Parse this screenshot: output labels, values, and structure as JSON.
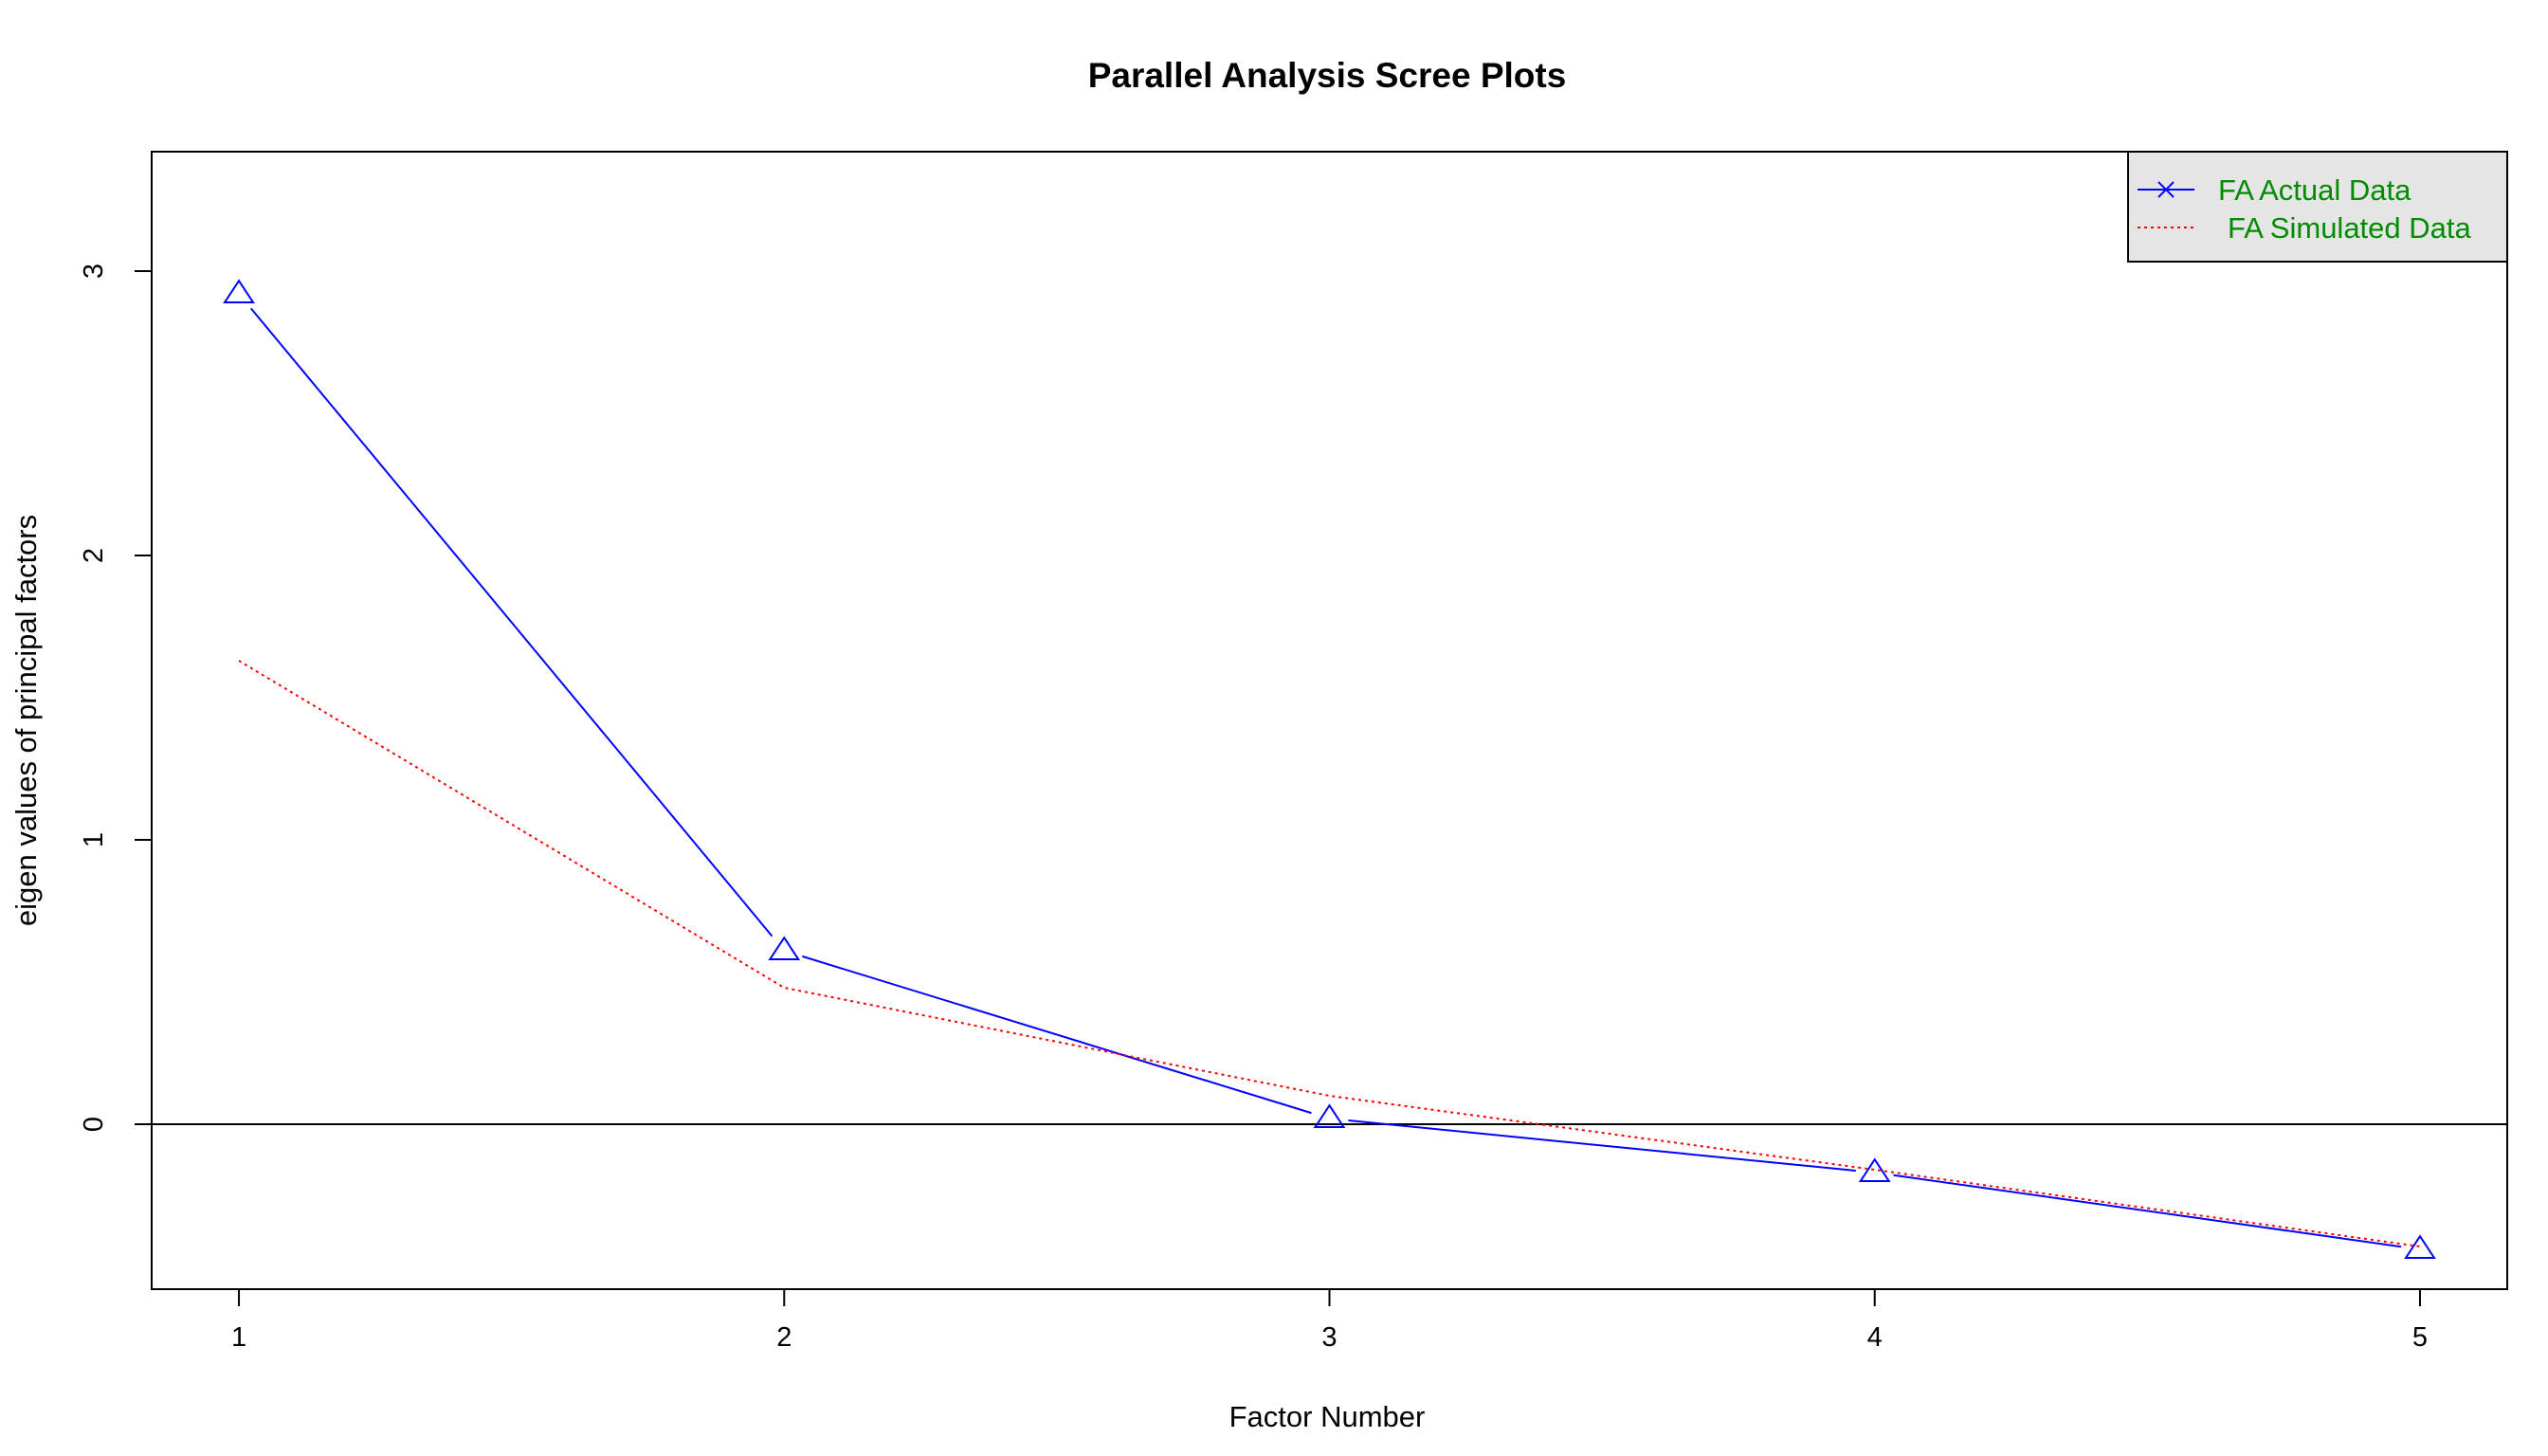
{
  "chart_data": {
    "type": "line",
    "title": "Parallel Analysis Scree Plots",
    "xlabel": "Factor Number",
    "ylabel": "eigen values of principal factors",
    "x": [
      1,
      2,
      3,
      4,
      5
    ],
    "xticks": [
      "1",
      "2",
      "3",
      "4",
      "5"
    ],
    "yticks": [
      "0",
      "1",
      "2",
      "3"
    ],
    "xlim": [
      0.84,
      5.16
    ],
    "ylim": [
      -0.58,
      3.42
    ],
    "grid": false,
    "reference_line_y": 0,
    "legend_position": "top-right",
    "legend_title_prefix": "FA",
    "series": [
      {
        "name": "Actual Data",
        "values": [
          2.92,
          0.61,
          0.02,
          -0.17,
          -0.44
        ],
        "color": "#0000ff",
        "line_style": "solid",
        "marker": "triangle",
        "legend_marker": "x"
      },
      {
        "name": "Simulated Data",
        "values": [
          1.63,
          0.48,
          0.1,
          -0.16,
          -0.43
        ],
        "color": "#ff0000",
        "line_style": "dotted",
        "marker": "none"
      }
    ],
    "legend_text_color": "#008b00",
    "legend_background": "#e5e5e5"
  }
}
